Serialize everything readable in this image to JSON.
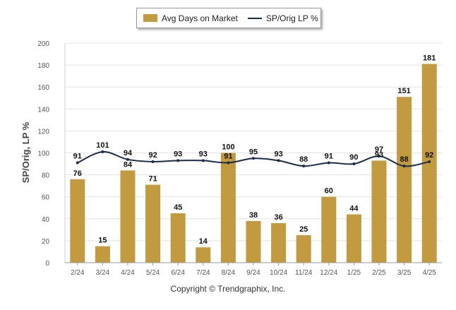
{
  "legend": {
    "bar_label": "Avg Days on Market",
    "line_label": "SP/Orig LP %"
  },
  "copyright": "Copyright © Trendgraphix, Inc.",
  "colors": {
    "bar": "#c29a3f",
    "line": "#1b2b4a",
    "grid": "#e3e3e3",
    "axis_text": "#555555",
    "label_text": "#111111"
  },
  "chart_data": {
    "type": "bar",
    "ylabel": "SP/Orig, LP %",
    "ylim": [
      0,
      200
    ],
    "yticks": [
      0,
      20,
      40,
      60,
      80,
      100,
      120,
      140,
      160,
      180,
      200
    ],
    "grid": true,
    "legend_position": "top",
    "categories": [
      "2/24",
      "3/24",
      "4/24",
      "5/24",
      "6/24",
      "7/24",
      "8/24",
      "9/24",
      "10/24",
      "11/24",
      "12/24",
      "1/25",
      "2/25",
      "3/25",
      "4/25"
    ],
    "series": [
      {
        "name": "Avg Days on Market",
        "type": "bar",
        "values": [
          76,
          15,
          84,
          71,
          45,
          14,
          100,
          38,
          36,
          25,
          60,
          44,
          93,
          151,
          181
        ]
      },
      {
        "name": "SP/Orig LP %",
        "type": "line",
        "values": [
          91,
          101,
          94,
          92,
          93,
          93,
          91,
          95,
          93,
          88,
          91,
          90,
          97,
          88,
          92
        ]
      }
    ]
  }
}
